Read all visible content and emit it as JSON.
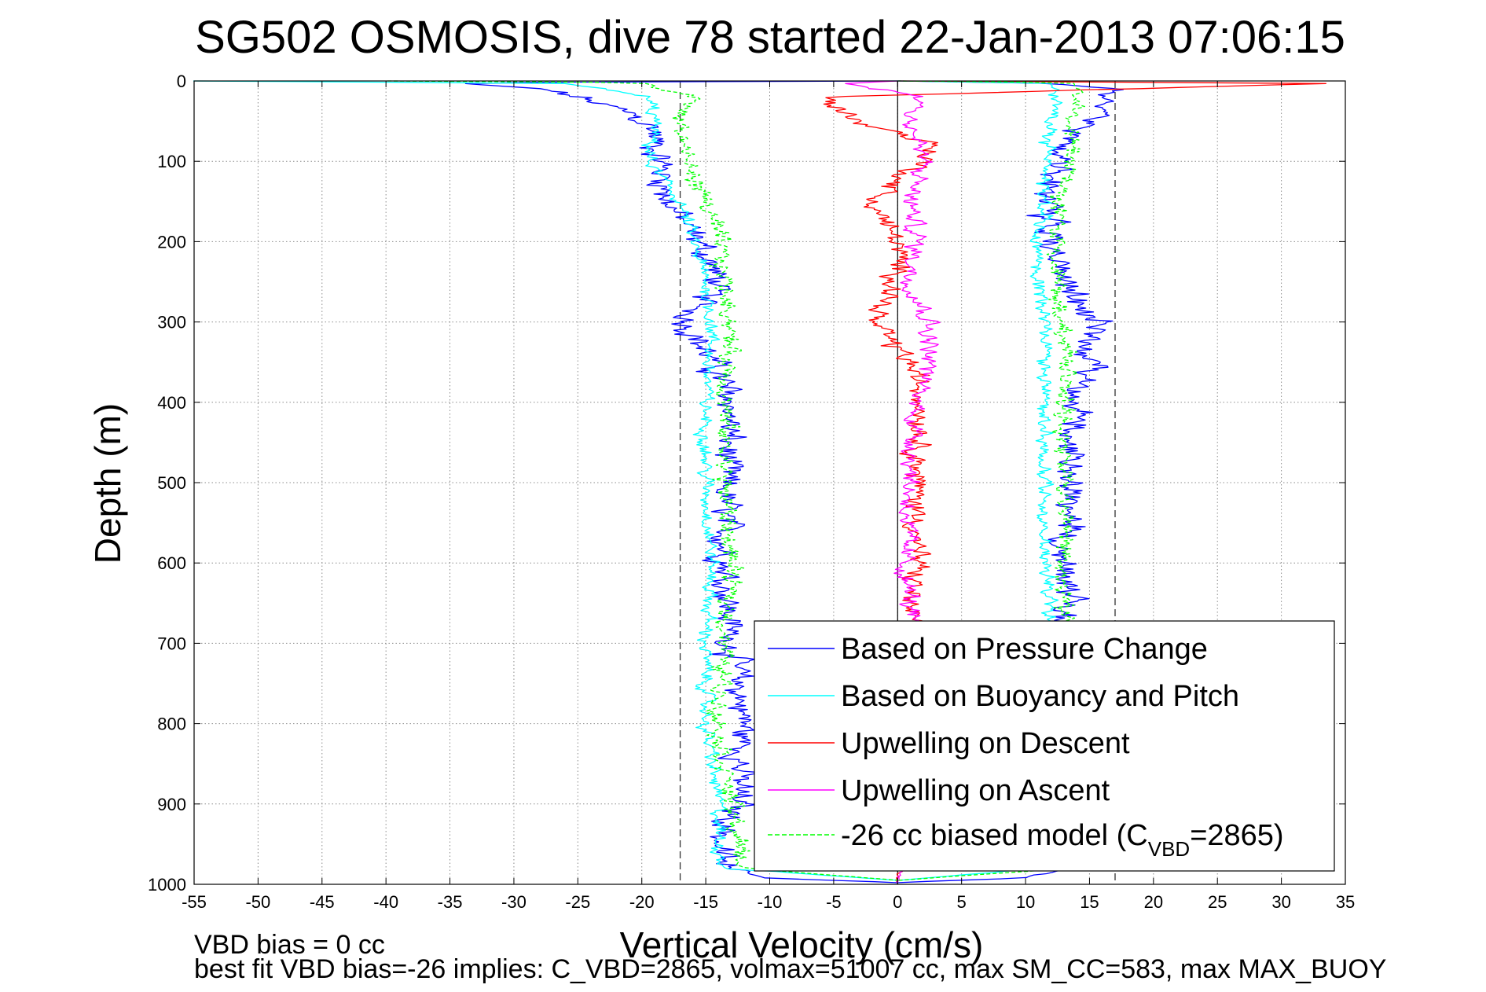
{
  "chart_data": {
    "type": "line",
    "title": "SG502 OSMOSIS, dive 78 started 22-Jan-2013 07:06:15",
    "xlabel": "Vertical Velocity (cm/s)",
    "ylabel": "Depth (m)",
    "xlim": [
      -55,
      35
    ],
    "ylim": [
      0,
      1000
    ],
    "y_reversed": true,
    "grid": true,
    "x_ticks": [
      -55,
      -50,
      -45,
      -40,
      -35,
      -30,
      -25,
      -20,
      -15,
      -10,
      -5,
      0,
      5,
      10,
      15,
      20,
      25,
      30,
      35
    ],
    "y_ticks": [
      0,
      100,
      200,
      300,
      400,
      500,
      600,
      700,
      800,
      900,
      1000
    ],
    "reference_lines": {
      "dashed_x": [
        -17,
        17
      ],
      "solid_x": [
        0
      ]
    },
    "legend": {
      "position": "bottom-right",
      "entries": [
        {
          "label": "Based on Pressure Change",
          "color": "#0000ff",
          "style": "solid"
        },
        {
          "label": "Based on Buoyancy and Pitch",
          "color": "#00ffff",
          "style": "solid"
        },
        {
          "label": "Upwelling on Descent",
          "color": "#ff0000",
          "style": "solid"
        },
        {
          "label": "Upwelling on Ascent",
          "color": "#ff00ff",
          "style": "solid"
        },
        {
          "label_prefix": "-26 cc biased model (C",
          "label_sub": "VBD",
          "label_suffix": "=2865)",
          "color": "#00ff00",
          "style": "dashed"
        }
      ]
    },
    "series": [
      {
        "name": "Based on Pressure Change",
        "color": "#0000ff",
        "noise": 1.8,
        "branches": [
          {
            "depth": [
              0,
              2,
              10,
              20,
              40,
              60,
              80,
              100,
              150,
              200,
              250,
              300,
              350,
              400,
              500,
              600,
              700,
              800,
              900,
              950,
              980,
              992,
              998
            ],
            "v": [
              0,
              -35,
              -28,
              -25,
              -21,
              -19,
              -19,
              -18.5,
              -18,
              -15.5,
              -14,
              -16.5,
              -14.5,
              -13,
              -13.5,
              -13.5,
              -13,
              -12,
              -12.5,
              -14,
              -13.5,
              -10,
              0
            ]
          },
          {
            "depth": [
              998,
              992,
              980,
              950,
              900,
              800,
              700,
              600,
              500,
              400,
              350,
              300,
              250,
              200,
              150,
              100,
              60,
              30,
              10,
              3,
              0
            ],
            "v": [
              0,
              10,
              13.5,
              13.5,
              13,
              13.5,
              13.5,
              13,
              13.5,
              14,
              15,
              15.5,
              13,
              12,
              11.5,
              12.5,
              14,
              15.5,
              16.5,
              12,
              0
            ]
          }
        ]
      },
      {
        "name": "Based on Buoyancy and Pitch",
        "color": "#00ffff",
        "noise": 0.9,
        "branches": [
          {
            "depth": [
              0,
              3,
              20,
              50,
              100,
              150,
              200,
              250,
              300,
              400,
              500,
              600,
              700,
              800,
              900,
              950,
              980,
              995
            ],
            "v": [
              -55,
              -26,
              -19.5,
              -19,
              -19.5,
              -17,
              -16,
              -15,
              -14.5,
              -15,
              -15,
              -14.5,
              -15,
              -15,
              -14,
              -14,
              -13.5,
              0
            ]
          },
          {
            "depth": [
              995,
              980,
              950,
              900,
              800,
              700,
              600,
              500,
              400,
              300,
              250,
              200,
              150,
              100,
              50,
              20,
              3,
              0
            ],
            "v": [
              0,
              11.5,
              11.5,
              11.5,
              11.5,
              12,
              11.5,
              11.5,
              11.5,
              11.5,
              11,
              11,
              11.5,
              11.5,
              12,
              12.5,
              12,
              0
            ]
          }
        ]
      },
      {
        "name": "Upwelling on Descent",
        "color": "#ff0000",
        "noise": 1.4,
        "branches": [
          {
            "depth": [
              0,
              3,
              20,
              50,
              80,
              100,
              150,
              200,
              250,
              300,
              350,
              400,
              500,
              600,
              650,
              700,
              800,
              900,
              990,
              998
            ],
            "v": [
              0,
              34,
              -6,
              -3,
              3,
              2,
              -2,
              0,
              0,
              -2,
              1,
              2,
              1.5,
              1.5,
              1,
              1,
              1,
              1,
              0,
              0
            ]
          }
        ]
      },
      {
        "name": "Upwelling on Ascent",
        "color": "#ff00ff",
        "noise": 1.2,
        "branches": [
          {
            "depth": [
              0,
              3,
              20,
              50,
              100,
              150,
              200,
              250,
              300,
              350,
              400,
              500,
              600,
              650,
              700,
              800,
              900,
              990,
              998
            ],
            "v": [
              0,
              -4,
              2,
              1,
              2,
              1,
              1.5,
              1,
              2.5,
              2.5,
              1.5,
              1,
              0.5,
              1,
              1,
              1,
              1,
              0,
              0
            ]
          }
        ]
      },
      {
        "name": "-26 cc biased model (C_VBD=2865)",
        "color": "#00ff00",
        "dashed": true,
        "noise": 1.2,
        "branches": [
          {
            "depth": [
              0,
              2,
              20,
              50,
              100,
              150,
              200,
              250,
              300,
              400,
              500,
              600,
              700,
              800,
              900,
              950,
              980,
              995
            ],
            "v": [
              -40,
              -20,
              -16,
              -17,
              -16.5,
              -15,
              -14,
              -13.5,
              -13,
              -13.5,
              -13.5,
              -13,
              -13.5,
              -14,
              -13,
              -12.5,
              -12,
              0
            ]
          },
          {
            "depth": [
              995,
              980,
              950,
              900,
              800,
              700,
              600,
              500,
              400,
              300,
              250,
              200,
              150,
              100,
              50,
              20,
              2,
              0
            ],
            "v": [
              0,
              13.5,
              13.5,
              13.5,
              13.5,
              13.5,
              13,
              13,
              13,
              13,
              12.5,
              12.5,
              12.5,
              13.5,
              14,
              14,
              14,
              0
            ]
          }
        ]
      }
    ]
  },
  "notes": {
    "line1": "VBD bias = 0 cc",
    "line2": "best fit VBD bias=-26 implies: C_VBD=2865, volmax=51007 cc, max SM_CC=583, max MAX_BUOY"
  }
}
